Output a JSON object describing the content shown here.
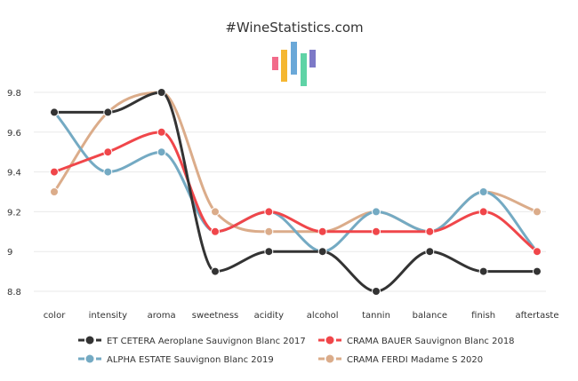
{
  "chart_data": {
    "type": "line",
    "title": "#WineStatistics.com",
    "categories": [
      "color",
      "intensity",
      "aroma",
      "sweetness",
      "acidity",
      "alcohol",
      "tannin",
      "balance",
      "finish",
      "aftertaste"
    ],
    "y_ticks": [
      "8.8",
      "9",
      "9.2",
      "9.4",
      "9.6",
      "9.8"
    ],
    "ylim": [
      8.8,
      9.8
    ],
    "grid": true,
    "legend_position": "bottom",
    "series": [
      {
        "name": "ET CETERA Aeroplane Sauvignon Blanc 2017",
        "color": "#333333",
        "values": [
          9.7,
          9.7,
          9.8,
          8.9,
          9.0,
          9.0,
          8.8,
          9.0,
          8.9,
          8.9
        ]
      },
      {
        "name": "CRAMA BAUER Sauvignon Blanc 2018",
        "color": "#f0464a",
        "values": [
          9.4,
          9.5,
          9.6,
          9.1,
          9.2,
          9.1,
          9.1,
          9.1,
          9.2,
          9.0
        ]
      },
      {
        "name": "ALPHA ESTATE Sauvignon Blanc 2019",
        "color": "#74aac3",
        "values": [
          9.7,
          9.4,
          9.5,
          9.1,
          9.2,
          9.0,
          9.2,
          9.1,
          9.3,
          9.0
        ]
      },
      {
        "name": "CRAMA FERDI Madame S 2020",
        "color": "#dbac8a",
        "values": [
          9.3,
          9.7,
          9.8,
          9.2,
          9.1,
          9.1,
          9.2,
          9.1,
          9.3,
          9.2
        ]
      }
    ]
  },
  "logo": {
    "name": "wine-statistics-logo",
    "bar_colors": [
      "#f26b8a",
      "#f5b731",
      "#6aa8d8",
      "#5fd3a6",
      "#7d79c7"
    ]
  }
}
